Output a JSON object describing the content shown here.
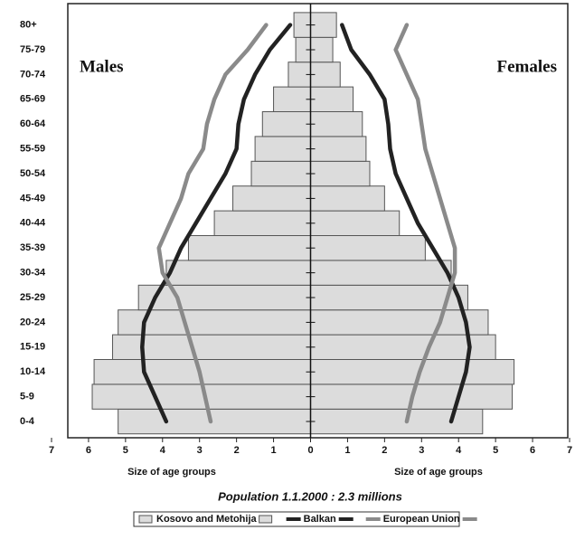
{
  "chart_data": {
    "type": "pyramid",
    "subtitle": "Population 1.1.2000 : 2.3 millions",
    "left_label": "Males",
    "right_label": "Females",
    "x_label_left": "Size of age groups",
    "x_label_right": "Size of age groups",
    "categories": [
      "0-4",
      "5-9",
      "10-14",
      "15-19",
      "20-24",
      "25-29",
      "30-34",
      "35-39",
      "40-44",
      "45-49",
      "50-54",
      "55-59",
      "60-64",
      "65-69",
      "70-74",
      "75-79",
      "80+"
    ],
    "xlim": [
      -7,
      7
    ],
    "xticks": [
      {
        "value": -7,
        "label": "7"
      },
      {
        "value": -6,
        "label": "6"
      },
      {
        "value": -5,
        "label": "5"
      },
      {
        "value": -4,
        "label": "4"
      },
      {
        "value": -3,
        "label": "3"
      },
      {
        "value": -2,
        "label": "2"
      },
      {
        "value": -1,
        "label": "1"
      },
      0,
      1,
      2,
      3,
      4,
      5,
      6,
      7
    ],
    "series": [
      {
        "name": "Kosovo and Metohija",
        "kind": "bar",
        "color": "#dcdcdc",
        "males": [
          5.2,
          5.9,
          5.85,
          5.35,
          5.2,
          4.65,
          3.9,
          3.3,
          2.6,
          2.1,
          1.6,
          1.5,
          1.3,
          1.0,
          0.6,
          0.4,
          0.45
        ],
        "females": [
          4.65,
          5.45,
          5.5,
          5.0,
          4.8,
          4.25,
          3.8,
          3.1,
          2.4,
          2.0,
          1.6,
          1.5,
          1.4,
          1.15,
          0.8,
          0.6,
          0.7
        ]
      },
      {
        "name": "Balkan",
        "kind": "line",
        "color": "#222222",
        "males": [
          3.9,
          4.2,
          4.5,
          4.55,
          4.5,
          4.2,
          3.8,
          3.5,
          3.1,
          2.7,
          2.3,
          2.0,
          1.95,
          1.8,
          1.5,
          1.1,
          0.55
        ],
        "females": [
          3.8,
          4.0,
          4.2,
          4.3,
          4.2,
          4.0,
          3.7,
          3.3,
          2.9,
          2.6,
          2.3,
          2.15,
          2.1,
          2.0,
          1.6,
          1.1,
          0.85
        ]
      },
      {
        "name": "European Union",
        "kind": "line",
        "color": "#8a8a8a",
        "males": [
          2.7,
          2.85,
          3.0,
          3.2,
          3.4,
          3.6,
          4.0,
          4.1,
          3.8,
          3.5,
          3.3,
          2.9,
          2.8,
          2.6,
          2.3,
          1.7,
          1.2
        ],
        "females": [
          2.6,
          2.75,
          2.95,
          3.2,
          3.5,
          3.7,
          3.9,
          3.9,
          3.7,
          3.5,
          3.3,
          3.1,
          3.0,
          2.9,
          2.6,
          2.3,
          2.6
        ]
      }
    ]
  }
}
